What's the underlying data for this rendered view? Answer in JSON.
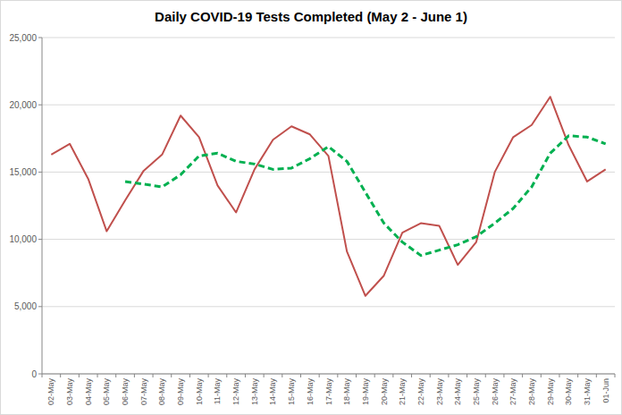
{
  "chart_data": {
    "type": "line",
    "title": "Daily COVID-19 Tests Completed (May 2 - June 1)",
    "categories": [
      "02-May",
      "03-May",
      "04-May",
      "05-May",
      "06-May",
      "07-May",
      "08-May",
      "09-May",
      "10-May",
      "11-May",
      "12-May",
      "13-May",
      "14-May",
      "15-May",
      "16-May",
      "17-May",
      "18-May",
      "19-May",
      "20-May",
      "21-May",
      "22-May",
      "23-May",
      "24-May",
      "25-May",
      "26-May",
      "27-May",
      "28-May",
      "29-May",
      "30-May",
      "31-May",
      "01-Jun"
    ],
    "series": [
      {
        "color": "#c0504d",
        "line_style": "solid",
        "values": [
          16300,
          17100,
          14500,
          10600,
          12900,
          15100,
          16300,
          19200,
          17600,
          14000,
          12000,
          15200,
          17400,
          18400,
          17800,
          16200,
          9100,
          5800,
          7300,
          10500,
          11200,
          11000,
          8100,
          9800,
          15000,
          17600,
          18500,
          20600,
          17000,
          14300,
          15200
        ]
      },
      {
        "color": "#00b050",
        "line_style": "dashed",
        "values": [
          null,
          null,
          null,
          null,
          14300,
          14100,
          13900,
          14800,
          16200,
          16400,
          15800,
          15600,
          15200,
          15300,
          16000,
          16900,
          15800,
          13500,
          11200,
          9800,
          8800,
          9200,
          9600,
          10200,
          11200,
          12300,
          13900,
          16400,
          17700,
          17600,
          17100
        ]
      }
    ],
    "ylim": [
      0,
      25000
    ],
    "yticks": [
      0,
      {
        "value": 5000,
        "label": "5,000"
      },
      {
        "value": 10000,
        "label": "10,000"
      },
      {
        "value": 15000,
        "label": "15,000"
      },
      {
        "value": 20000,
        "label": "20,000"
      },
      {
        "value": 25000,
        "label": "25,000"
      }
    ],
    "grid": true
  }
}
